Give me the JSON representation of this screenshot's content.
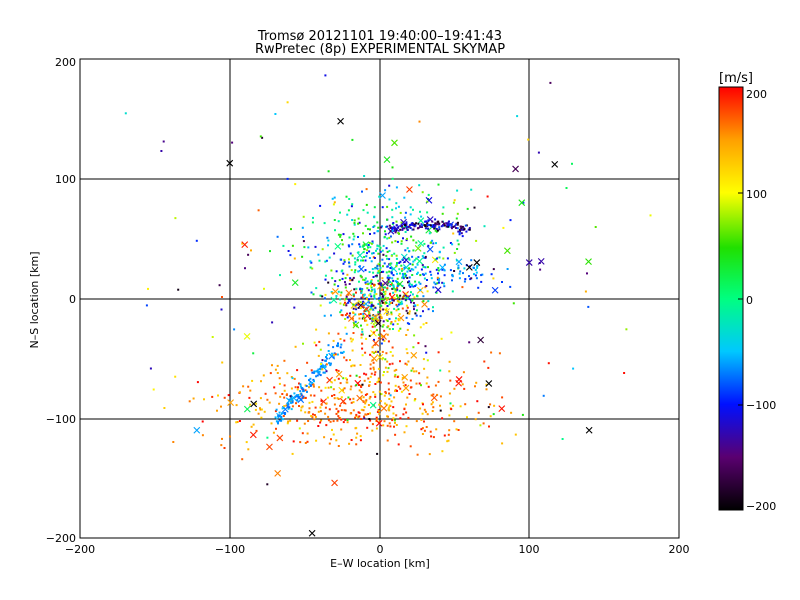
{
  "chart_data": {
    "type": "scatter",
    "title": "Tromsø 20121101 19:40:00–19:41:43",
    "subtitle": "RwPretec (8p) EXPERIMENTAL SKYMAP",
    "xlabel": "E–W location [km]",
    "ylabel": "N–S location [km]",
    "xlim": [
      -200,
      200
    ],
    "ylim": [
      -200,
      200
    ],
    "x_ticks": [
      "−200",
      "−100",
      "0",
      "100",
      "200"
    ],
    "y_ticks": [
      "−200",
      "−100",
      "0",
      "100",
      "200"
    ],
    "grid": true,
    "colorbar": {
      "label": "[m/s]",
      "range": [
        -200,
        200
      ],
      "ticks": [
        "200",
        "100",
        "0",
        "−100",
        "−200"
      ],
      "colormap": [
        "#000000",
        "#5a0070",
        "#0010ff",
        "#00c8ff",
        "#00ff80",
        "#20e000",
        "#ffff00",
        "#ffa000",
        "#ff0000"
      ]
    },
    "legend": "none",
    "large_points_marker": "x",
    "small_points_marker": "dot",
    "clusters": [
      {
        "name": "center",
        "x": 0,
        "y": 0,
        "spread": [
          14,
          14
        ],
        "count": 350,
        "velocity_range": [
          -200,
          200
        ]
      },
      {
        "name": "north-core",
        "x": 0,
        "y": 38,
        "spread": [
          26,
          24
        ],
        "count": 420,
        "velocity_range": [
          -120,
          80
        ]
      },
      {
        "name": "north-arc",
        "x": 30,
        "y": 58,
        "spread": [
          22,
          5
        ],
        "count": 150,
        "velocity_range": [
          -200,
          -80
        ]
      },
      {
        "name": "north-east-arm",
        "x": 45,
        "y": 20,
        "spread": [
          20,
          5
        ],
        "count": 80,
        "velocity_range": [
          -100,
          -40
        ]
      },
      {
        "name": "south-red",
        "x": -20,
        "y": -90,
        "spread": [
          45,
          18
        ],
        "count": 450,
        "velocity_range": [
          120,
          200
        ]
      },
      {
        "name": "south-diagonal-streak",
        "x": -45,
        "y": -70,
        "spread": [
          25,
          30
        ],
        "count": 120,
        "velocity_range": [
          -80,
          -50
        ]
      },
      {
        "name": "south-center",
        "x": -5,
        "y": -40,
        "spread": [
          20,
          25
        ],
        "count": 160,
        "velocity_range": [
          60,
          200
        ]
      },
      {
        "name": "sparse-scatter",
        "x": 0,
        "y": 0,
        "spread": [
          90,
          80
        ],
        "count": 160,
        "velocity_range": [
          -200,
          200
        ]
      }
    ],
    "notable_x_markers": [
      {
        "x": -100,
        "y": 113,
        "v": -200
      },
      {
        "x": -26,
        "y": 148,
        "v": -200
      },
      {
        "x": 117,
        "y": 112,
        "v": -200
      },
      {
        "x": 140,
        "y": -110,
        "v": -200
      },
      {
        "x": 73,
        "y": -71,
        "v": -200
      },
      {
        "x": -84,
        "y": -88,
        "v": -200
      },
      {
        "x": -45,
        "y": -196,
        "v": -200
      },
      {
        "x": -122,
        "y": -110,
        "v": -60
      },
      {
        "x": -68,
        "y": -146,
        "v": 160
      },
      {
        "x": -30,
        "y": -154,
        "v": 180
      },
      {
        "x": 20,
        "y": 91,
        "v": 180
      },
      {
        "x": -90,
        "y": 45,
        "v": 190
      },
      {
        "x": 95,
        "y": 80,
        "v": 40
      },
      {
        "x": 10,
        "y": 130,
        "v": 60
      },
      {
        "x": 5,
        "y": 116,
        "v": 40
      },
      {
        "x": 100,
        "y": 30,
        "v": -130
      },
      {
        "x": 108,
        "y": 31,
        "v": -130
      },
      {
        "x": 2,
        "y": 86,
        "v": -60
      },
      {
        "x": 65,
        "y": 30,
        "v": -200
      },
      {
        "x": 60,
        "y": 26,
        "v": -200
      }
    ]
  }
}
